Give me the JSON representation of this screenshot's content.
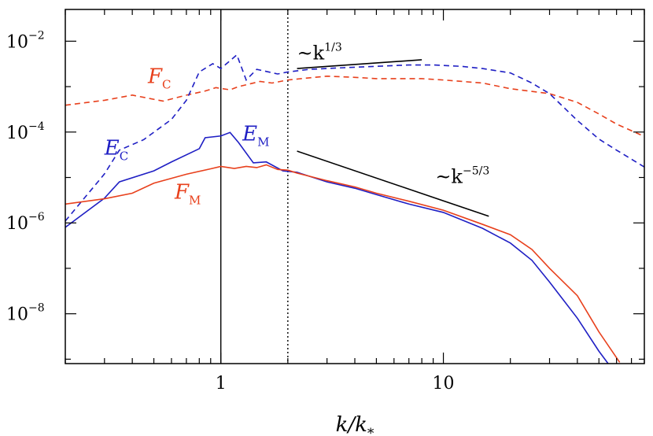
{
  "chart_data": {
    "type": "line",
    "xscale": "log",
    "yscale": "log",
    "xlim": [
      0.2,
      80
    ],
    "ylim": [
      8e-10,
      0.05
    ],
    "x_ticks": [
      {
        "value": 1,
        "label": "1"
      },
      {
        "value": 10,
        "label": "10"
      }
    ],
    "y_ticks": [
      {
        "value": 0.01,
        "base": "10",
        "exp": "−2"
      },
      {
        "value": 0.0001,
        "base": "10",
        "exp": "−4"
      },
      {
        "value": 1e-06,
        "base": "10",
        "exp": "−6"
      },
      {
        "value": 1e-08,
        "base": "10",
        "exp": "−8"
      }
    ],
    "xlabel": {
      "main": "k/k",
      "sub": "*"
    },
    "ylabel": "",
    "series": [
      {
        "name": "F_C",
        "label_main": "F",
        "label_sub": "C",
        "label_pos": [
          0.47,
          0.0012
        ],
        "color": "#e8401c",
        "dash": "dashed",
        "points": [
          [
            0.2,
            0.00039
          ],
          [
            0.3,
            0.0005
          ],
          [
            0.4,
            0.00065
          ],
          [
            0.55,
            0.00048
          ],
          [
            0.7,
            0.00065
          ],
          [
            0.85,
            0.0008
          ],
          [
            0.95,
            0.00095
          ],
          [
            1.1,
            0.00085
          ],
          [
            1.2,
            0.001
          ],
          [
            1.5,
            0.0013
          ],
          [
            1.7,
            0.0012
          ],
          [
            2,
            0.0014
          ],
          [
            2.3,
            0.0015
          ],
          [
            3,
            0.0017
          ],
          [
            4,
            0.0016
          ],
          [
            5,
            0.0015
          ],
          [
            6,
            0.0015
          ],
          [
            8,
            0.0015
          ],
          [
            10,
            0.0014
          ],
          [
            15,
            0.0012
          ],
          [
            20,
            0.0009
          ],
          [
            30,
            0.0007
          ],
          [
            40,
            0.00045
          ],
          [
            50,
            0.00025
          ],
          [
            60,
            0.00015
          ],
          [
            80,
            8e-05
          ]
        ]
      },
      {
        "name": "E_C",
        "label_main": "E",
        "label_sub": "C",
        "label_pos": [
          0.3,
          3.2e-05
        ],
        "color": "#1f1fc4",
        "dash": "dashed",
        "points": [
          [
            0.2,
            1.1e-06
          ],
          [
            0.3,
            1.2e-05
          ],
          [
            0.35,
            4e-05
          ],
          [
            0.45,
            6.8e-05
          ],
          [
            0.6,
            0.00019
          ],
          [
            0.7,
            0.0005
          ],
          [
            0.8,
            0.0021
          ],
          [
            0.92,
            0.0032
          ],
          [
            1,
            0.0025
          ],
          [
            1.18,
            0.005
          ],
          [
            1.3,
            0.0014
          ],
          [
            1.45,
            0.0024
          ],
          [
            1.8,
            0.0019
          ],
          [
            2,
            0.0021
          ],
          [
            2.5,
            0.0024
          ],
          [
            3.5,
            0.0026
          ],
          [
            5,
            0.0028
          ],
          [
            7,
            0.003
          ],
          [
            9,
            0.003
          ],
          [
            12,
            0.0028
          ],
          [
            15,
            0.0025
          ],
          [
            20,
            0.002
          ],
          [
            25,
            0.0012
          ],
          [
            30,
            0.0007
          ],
          [
            40,
            0.00018
          ],
          [
            50,
            7e-05
          ],
          [
            60,
            4e-05
          ],
          [
            80,
            1.7e-05
          ]
        ]
      },
      {
        "name": "E_M",
        "label_main": "E",
        "label_sub": "M",
        "label_pos": [
          1.25,
          6.5e-05
        ],
        "color": "#1f1fc4",
        "dash": "solid",
        "points": [
          [
            0.2,
            8e-07
          ],
          [
            0.3,
            3.5e-06
          ],
          [
            0.35,
            8e-06
          ],
          [
            0.5,
            1.4e-05
          ],
          [
            0.6,
            2.2e-05
          ],
          [
            0.8,
            4.3e-05
          ],
          [
            0.85,
            7.5e-05
          ],
          [
            1,
            8.2e-05
          ],
          [
            1.1,
            9.8e-05
          ],
          [
            1.2,
            5.9e-05
          ],
          [
            1.4,
            2.1e-05
          ],
          [
            1.6,
            2.2e-05
          ],
          [
            1.9,
            1.4e-05
          ],
          [
            2.2,
            1.3e-05
          ],
          [
            3,
            8e-06
          ],
          [
            4,
            5.8e-06
          ],
          [
            5,
            4.2e-06
          ],
          [
            7,
            2.6e-06
          ],
          [
            10,
            1.7e-06
          ],
          [
            15,
            7.6e-07
          ],
          [
            20,
            3.6e-07
          ],
          [
            25,
            1.5e-07
          ],
          [
            30,
            5e-08
          ],
          [
            40,
            8e-09
          ],
          [
            50,
            1.5e-09
          ],
          [
            55,
            8e-10
          ]
        ]
      },
      {
        "name": "F_M",
        "label_main": "F",
        "label_sub": "M",
        "label_pos": [
          0.62,
          3.4e-06
        ],
        "color": "#e8401c",
        "dash": "solid",
        "points": [
          [
            0.2,
            2.6e-06
          ],
          [
            0.3,
            3.4e-06
          ],
          [
            0.4,
            4.5e-06
          ],
          [
            0.5,
            7.5e-06
          ],
          [
            0.7,
            1.18e-05
          ],
          [
            0.9,
            1.55e-05
          ],
          [
            1,
            1.75e-05
          ],
          [
            1.15,
            1.58e-05
          ],
          [
            1.3,
            1.75e-05
          ],
          [
            1.45,
            1.65e-05
          ],
          [
            1.6,
            1.9e-05
          ],
          [
            1.8,
            1.5e-05
          ],
          [
            2,
            1.45e-05
          ],
          [
            2.2,
            1.25e-05
          ],
          [
            3,
            8.5e-06
          ],
          [
            4,
            6.2e-06
          ],
          [
            5,
            4.5e-06
          ],
          [
            7,
            3e-06
          ],
          [
            10,
            1.9e-06
          ],
          [
            15,
            9.3e-07
          ],
          [
            20,
            5.5e-07
          ],
          [
            25,
            2.6e-07
          ],
          [
            30,
            1e-07
          ],
          [
            40,
            2.5e-08
          ],
          [
            50,
            4e-09
          ],
          [
            62,
            8.5e-10
          ]
        ]
      }
    ],
    "vertical_lines": [
      {
        "x": 1,
        "style": "solid"
      },
      {
        "x": 2,
        "style": "dotted"
      }
    ],
    "slope_guides": [
      {
        "label_base": "~k",
        "label_exp": "1/3",
        "from": [
          2.2,
          0.0025
        ],
        "to": [
          8,
          0.0039
        ],
        "label_pos": [
          2.2,
          0.004
        ]
      },
      {
        "label_base": "~k",
        "label_exp": "−5/3",
        "from": [
          2.2,
          3.8e-05
        ],
        "to": [
          16,
          1.4e-06
        ],
        "label_pos": [
          9.2,
          7.5e-06
        ]
      }
    ]
  }
}
